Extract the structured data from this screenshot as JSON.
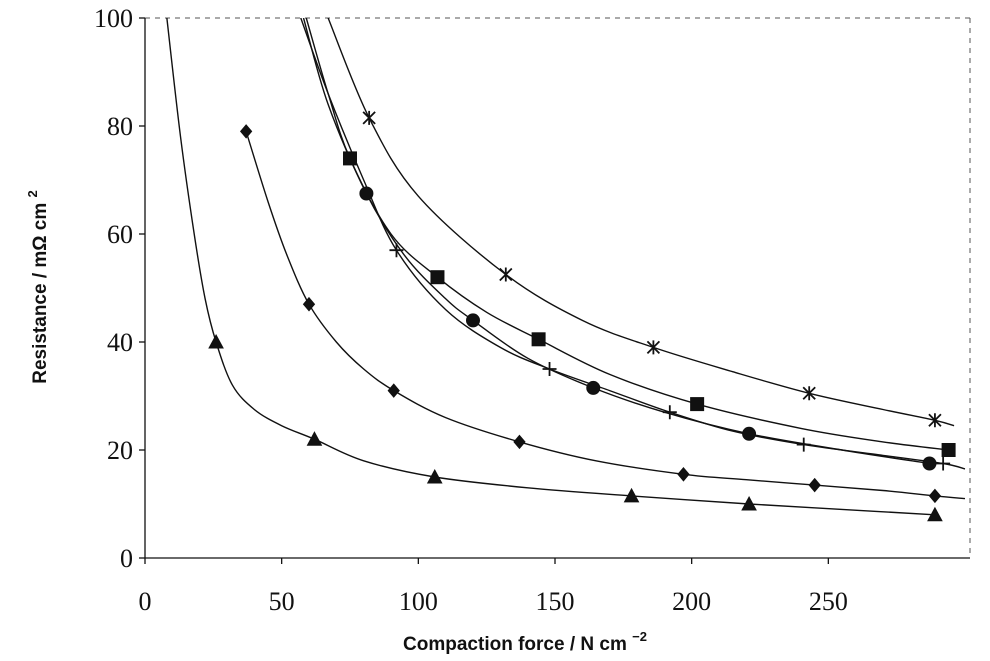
{
  "chart_data": {
    "type": "scatter",
    "title": "",
    "xlabel": "Compaction force / N cm",
    "xlabel_superscript": "−2",
    "ylabel": "Resistance / mΩ cm",
    "ylabel_superscript": "2",
    "xlim": [
      -5,
      300
    ],
    "ylim": [
      0,
      100
    ],
    "xticks": [
      0,
      50,
      100,
      150,
      200,
      250
    ],
    "yticks": [
      0,
      20,
      40,
      60,
      80,
      100
    ],
    "grid": false,
    "legend": "none",
    "series": [
      {
        "marker": "asterisk",
        "points": [
          [
            82,
            81.5
          ],
          [
            132,
            52.5
          ],
          [
            186,
            39
          ],
          [
            243,
            30.5
          ],
          [
            289,
            25.5
          ]
        ],
        "curve": [
          [
            67,
            100
          ],
          [
            82,
            81.5
          ],
          [
            100,
            67
          ],
          [
            132,
            52.5
          ],
          [
            160,
            44
          ],
          [
            186,
            39
          ],
          [
            215,
            34.5
          ],
          [
            243,
            30.5
          ],
          [
            270,
            27.5
          ],
          [
            289,
            25.5
          ],
          [
            296,
            24.5
          ]
        ]
      },
      {
        "marker": "square",
        "points": [
          [
            75,
            74
          ],
          [
            107,
            52
          ],
          [
            144,
            40.5
          ],
          [
            202,
            28.5
          ],
          [
            294,
            20
          ]
        ],
        "curve": [
          [
            59,
            100
          ],
          [
            67,
            86
          ],
          [
            75,
            74
          ],
          [
            90,
            60
          ],
          [
            107,
            52
          ],
          [
            125,
            45.5
          ],
          [
            144,
            40.5
          ],
          [
            170,
            34
          ],
          [
            202,
            28.5
          ],
          [
            240,
            24
          ],
          [
            270,
            21.5
          ],
          [
            294,
            20
          ]
        ]
      },
      {
        "marker": "circle",
        "points": [
          [
            81,
            67.5
          ],
          [
            120,
            44
          ],
          [
            164,
            31.5
          ],
          [
            221,
            23
          ],
          [
            287,
            17.5
          ]
        ],
        "curve": [
          [
            58,
            100
          ],
          [
            67,
            84
          ],
          [
            81,
            67.5
          ],
          [
            95,
            56
          ],
          [
            110,
            48
          ],
          [
            120,
            44
          ],
          [
            140,
            37
          ],
          [
            164,
            31.5
          ],
          [
            190,
            27
          ],
          [
            221,
            23
          ],
          [
            255,
            20
          ],
          [
            287,
            17.5
          ]
        ]
      },
      {
        "marker": "plus",
        "points": [
          [
            92,
            57
          ],
          [
            148,
            35
          ],
          [
            192,
            27
          ],
          [
            241,
            21
          ],
          [
            292,
            17.5
          ]
        ],
        "curve": [
          [
            57,
            100
          ],
          [
            67,
            86
          ],
          [
            80,
            70
          ],
          [
            92,
            57
          ],
          [
            110,
            46
          ],
          [
            130,
            39
          ],
          [
            148,
            35
          ],
          [
            170,
            31
          ],
          [
            192,
            27
          ],
          [
            215,
            23.5
          ],
          [
            241,
            21
          ],
          [
            270,
            19
          ],
          [
            292,
            17.5
          ],
          [
            300,
            16.5
          ]
        ]
      },
      {
        "marker": "diamond",
        "points": [
          [
            37,
            79
          ],
          [
            60,
            47
          ],
          [
            91,
            31
          ],
          [
            137,
            21.5
          ],
          [
            197,
            15.5
          ],
          [
            245,
            13.5
          ],
          [
            289,
            11.5
          ]
        ],
        "curve": [
          [
            37,
            79
          ],
          [
            45,
            66
          ],
          [
            52,
            56
          ],
          [
            60,
            47
          ],
          [
            70,
            40
          ],
          [
            80,
            35
          ],
          [
            91,
            31
          ],
          [
            110,
            26
          ],
          [
            137,
            21.5
          ],
          [
            165,
            18
          ],
          [
            197,
            15.5
          ],
          [
            220,
            14.5
          ],
          [
            245,
            13.5
          ],
          [
            270,
            12.5
          ],
          [
            289,
            11.5
          ],
          [
            300,
            11
          ]
        ]
      },
      {
        "marker": "triangle",
        "points": [
          [
            26,
            40
          ],
          [
            62,
            22
          ],
          [
            106,
            15
          ],
          [
            178,
            11.5
          ],
          [
            221,
            10
          ],
          [
            289,
            8
          ]
        ],
        "curve": [
          [
            8,
            100
          ],
          [
            13,
            78
          ],
          [
            18,
            60
          ],
          [
            22,
            48
          ],
          [
            26,
            40
          ],
          [
            32,
            32
          ],
          [
            40,
            27.5
          ],
          [
            50,
            24.5
          ],
          [
            62,
            22
          ],
          [
            80,
            18
          ],
          [
            106,
            15
          ],
          [
            140,
            13
          ],
          [
            178,
            11.5
          ],
          [
            221,
            10
          ],
          [
            255,
            9
          ],
          [
            289,
            8
          ]
        ]
      }
    ]
  }
}
